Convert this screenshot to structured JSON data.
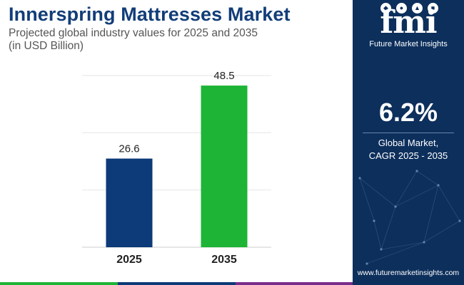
{
  "header": {
    "title": "Innerspring Mattresses Market",
    "subtitle_line1": "Projected global industry values for 2025 and 2035",
    "subtitle_line2": "(in USD Billion)"
  },
  "chart_data": {
    "type": "bar",
    "categories": [
      "2025",
      "2035"
    ],
    "values": [
      26.6,
      48.5
    ],
    "bar_colors": [
      "#0d3a78",
      "#1eb436"
    ],
    "ylim": [
      0,
      56
    ],
    "grid": true,
    "xlabel": "",
    "ylabel": ""
  },
  "brand": {
    "logo_text": "fmi",
    "logo_sub": "Future Market Insights",
    "website": "www.futuremarketinsights.com"
  },
  "highlight": {
    "value": "6.2%",
    "label_line1": "Global Market,",
    "label_line2": "CAGR 2025 - 2035"
  },
  "colors": {
    "title": "#123d78",
    "panel": "#0d2f5c",
    "bar_2025": "#0d3a78",
    "bar_2035": "#1eb436",
    "stripe": [
      "#1eb436",
      "#0d3a78",
      "#7b2d8b"
    ]
  }
}
